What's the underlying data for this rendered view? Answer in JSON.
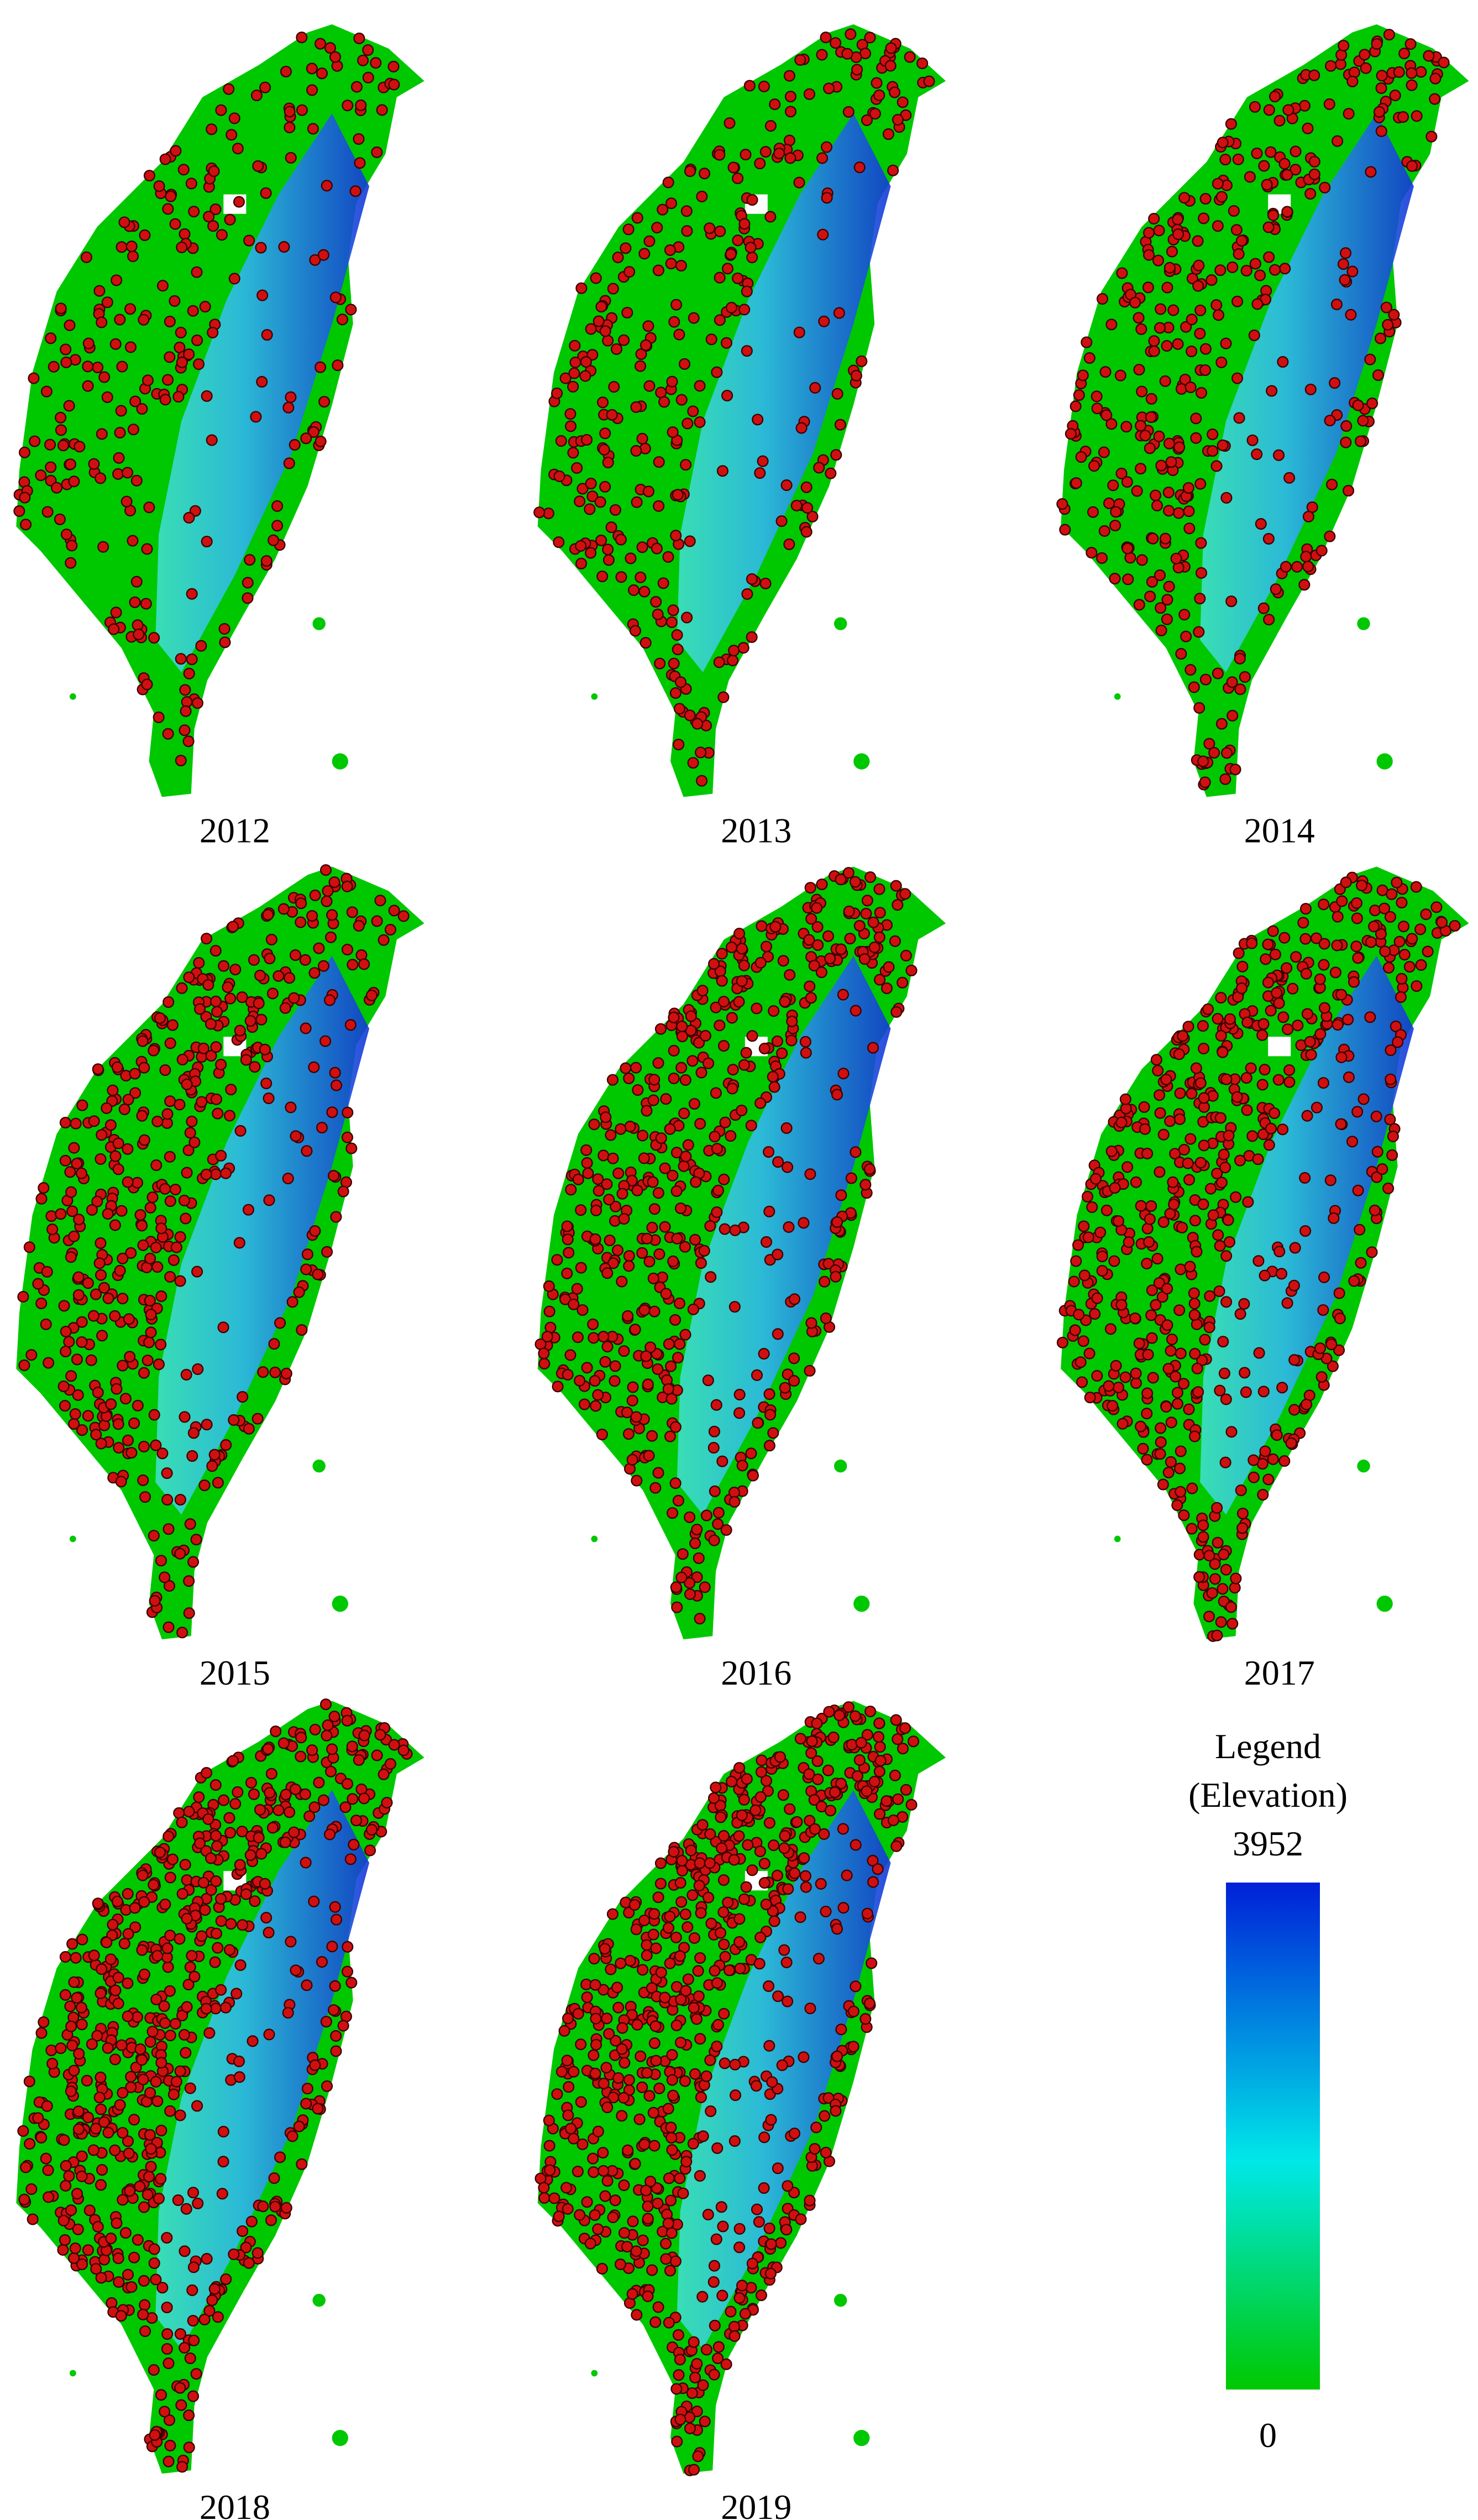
{
  "maps": [
    {
      "year": "2012"
    },
    {
      "year": "2013"
    },
    {
      "year": "2014"
    },
    {
      "year": "2015"
    },
    {
      "year": "2016"
    },
    {
      "year": "2017"
    },
    {
      "year": "2018"
    },
    {
      "year": "2019"
    }
  ],
  "legend": {
    "title": "Legend",
    "subtitle": "(Elevation)",
    "max": 3952,
    "min": 0
  }
}
